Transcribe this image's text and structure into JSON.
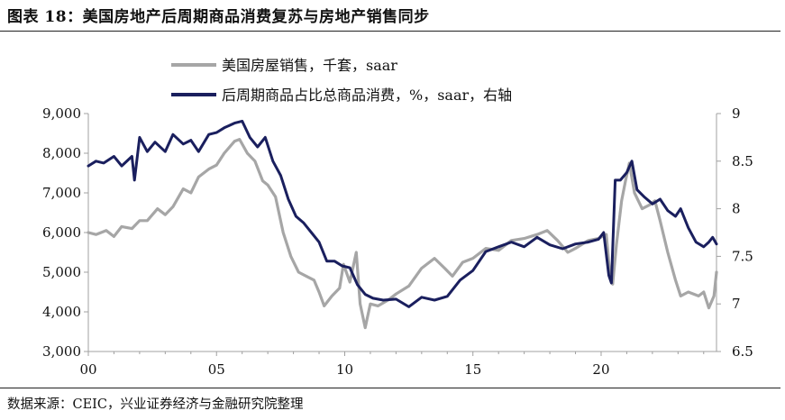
{
  "title": "图表 18：美国房地产后周期商品消费复苏与房地产销售同步",
  "source": "数据来源：CEIC，兴业证券经济与金融研究院整理",
  "colors": {
    "housing_sales": "#a6a6a6",
    "consumption_share": "#1a1f5e"
  },
  "chart_data": {
    "type": "line",
    "title": "",
    "xlabel": "",
    "ylabel": "",
    "x_ticks": [
      "00",
      "05",
      "10",
      "15",
      "20"
    ],
    "xlim": [
      2000,
      2024.5
    ],
    "y_left": {
      "lim": [
        3000,
        9000
      ],
      "ticks": [
        "3,000",
        "4,000",
        "5,000",
        "6,000",
        "7,000",
        "8,000",
        "9,000"
      ]
    },
    "y_right": {
      "lim": [
        6.5,
        9
      ],
      "ticks": [
        "6.5",
        "7",
        "7.5",
        "8",
        "8.5",
        "9"
      ]
    },
    "legend_placement": "top",
    "series": [
      {
        "name": "美国房屋销售，千套，saar",
        "axis": "left",
        "points": [
          [
            2000.0,
            6000
          ],
          [
            2000.3,
            5950
          ],
          [
            2000.7,
            6050
          ],
          [
            2001.0,
            5900
          ],
          [
            2001.3,
            6150
          ],
          [
            2001.7,
            6100
          ],
          [
            2002.0,
            6300
          ],
          [
            2002.3,
            6300
          ],
          [
            2002.7,
            6600
          ],
          [
            2003.0,
            6450
          ],
          [
            2003.3,
            6650
          ],
          [
            2003.7,
            7100
          ],
          [
            2004.0,
            7000
          ],
          [
            2004.3,
            7400
          ],
          [
            2004.7,
            7600
          ],
          [
            2005.0,
            7700
          ],
          [
            2005.3,
            8000
          ],
          [
            2005.7,
            8300
          ],
          [
            2005.9,
            8350
          ],
          [
            2006.2,
            8000
          ],
          [
            2006.5,
            7800
          ],
          [
            2006.8,
            7300
          ],
          [
            2007.0,
            7200
          ],
          [
            2007.3,
            6900
          ],
          [
            2007.6,
            6000
          ],
          [
            2007.9,
            5400
          ],
          [
            2008.2,
            5000
          ],
          [
            2008.5,
            4900
          ],
          [
            2008.8,
            4800
          ],
          [
            2009.0,
            4500
          ],
          [
            2009.2,
            4150
          ],
          [
            2009.5,
            4400
          ],
          [
            2009.8,
            4600
          ],
          [
            2009.95,
            5200
          ],
          [
            2010.2,
            4750
          ],
          [
            2010.45,
            5500
          ],
          [
            2010.6,
            4200
          ],
          [
            2010.8,
            3600
          ],
          [
            2011.0,
            4200
          ],
          [
            2011.3,
            4150
          ],
          [
            2011.7,
            4300
          ],
          [
            2012.0,
            4450
          ],
          [
            2012.5,
            4650
          ],
          [
            2013.0,
            5100
          ],
          [
            2013.5,
            5350
          ],
          [
            2013.9,
            5100
          ],
          [
            2014.2,
            4900
          ],
          [
            2014.6,
            5250
          ],
          [
            2015.0,
            5350
          ],
          [
            2015.5,
            5600
          ],
          [
            2016.0,
            5550
          ],
          [
            2016.5,
            5800
          ],
          [
            2017.0,
            5850
          ],
          [
            2017.5,
            5950
          ],
          [
            2017.9,
            6050
          ],
          [
            2018.3,
            5800
          ],
          [
            2018.7,
            5500
          ],
          [
            2019.0,
            5600
          ],
          [
            2019.5,
            5800
          ],
          [
            2019.9,
            5850
          ],
          [
            2020.2,
            5950
          ],
          [
            2020.35,
            4900
          ],
          [
            2020.45,
            4700
          ],
          [
            2020.6,
            5700
          ],
          [
            2020.8,
            6800
          ],
          [
            2020.95,
            7300
          ],
          [
            2021.1,
            7750
          ],
          [
            2021.3,
            7000
          ],
          [
            2021.6,
            6600
          ],
          [
            2021.9,
            6700
          ],
          [
            2022.1,
            6800
          ],
          [
            2022.3,
            6300
          ],
          [
            2022.6,
            5500
          ],
          [
            2022.9,
            4800
          ],
          [
            2023.1,
            4400
          ],
          [
            2023.4,
            4500
          ],
          [
            2023.8,
            4400
          ],
          [
            2024.0,
            4500
          ],
          [
            2024.2,
            4100
          ],
          [
            2024.4,
            4400
          ],
          [
            2024.5,
            5000
          ]
        ]
      },
      {
        "name": "后周期商品占比总商品消费，%，saar，右轴",
        "axis": "right",
        "points": [
          [
            2000.0,
            8.45
          ],
          [
            2000.3,
            8.5
          ],
          [
            2000.6,
            8.48
          ],
          [
            2001.0,
            8.55
          ],
          [
            2001.3,
            8.45
          ],
          [
            2001.7,
            8.55
          ],
          [
            2001.8,
            8.3
          ],
          [
            2002.0,
            8.75
          ],
          [
            2002.3,
            8.6
          ],
          [
            2002.6,
            8.7
          ],
          [
            2003.0,
            8.6
          ],
          [
            2003.3,
            8.78
          ],
          [
            2003.7,
            8.68
          ],
          [
            2004.0,
            8.72
          ],
          [
            2004.3,
            8.6
          ],
          [
            2004.7,
            8.78
          ],
          [
            2005.0,
            8.8
          ],
          [
            2005.3,
            8.85
          ],
          [
            2005.7,
            8.9
          ],
          [
            2006.0,
            8.92
          ],
          [
            2006.3,
            8.75
          ],
          [
            2006.6,
            8.65
          ],
          [
            2006.9,
            8.75
          ],
          [
            2007.2,
            8.5
          ],
          [
            2007.5,
            8.35
          ],
          [
            2007.8,
            8.1
          ],
          [
            2008.1,
            7.92
          ],
          [
            2008.4,
            7.85
          ],
          [
            2008.7,
            7.75
          ],
          [
            2009.0,
            7.65
          ],
          [
            2009.3,
            7.45
          ],
          [
            2009.6,
            7.45
          ],
          [
            2009.9,
            7.4
          ],
          [
            2010.2,
            7.38
          ],
          [
            2010.5,
            7.2
          ],
          [
            2010.8,
            7.1
          ],
          [
            2011.1,
            7.06
          ],
          [
            2011.5,
            7.04
          ],
          [
            2012.0,
            7.05
          ],
          [
            2012.5,
            6.97
          ],
          [
            2013.0,
            7.07
          ],
          [
            2013.5,
            7.04
          ],
          [
            2014.0,
            7.08
          ],
          [
            2014.5,
            7.25
          ],
          [
            2015.0,
            7.35
          ],
          [
            2015.5,
            7.55
          ],
          [
            2016.0,
            7.6
          ],
          [
            2016.5,
            7.65
          ],
          [
            2017.0,
            7.6
          ],
          [
            2017.5,
            7.7
          ],
          [
            2018.0,
            7.62
          ],
          [
            2018.5,
            7.58
          ],
          [
            2019.0,
            7.63
          ],
          [
            2019.5,
            7.65
          ],
          [
            2019.9,
            7.68
          ],
          [
            2020.1,
            7.75
          ],
          [
            2020.3,
            7.3
          ],
          [
            2020.4,
            7.22
          ],
          [
            2020.55,
            8.3
          ],
          [
            2020.75,
            8.3
          ],
          [
            2021.0,
            8.38
          ],
          [
            2021.2,
            8.5
          ],
          [
            2021.4,
            8.2
          ],
          [
            2021.7,
            8.12
          ],
          [
            2022.0,
            8.05
          ],
          [
            2022.3,
            8.1
          ],
          [
            2022.6,
            7.98
          ],
          [
            2022.9,
            7.92
          ],
          [
            2023.1,
            8.0
          ],
          [
            2023.4,
            7.8
          ],
          [
            2023.7,
            7.65
          ],
          [
            2024.0,
            7.6
          ],
          [
            2024.2,
            7.65
          ],
          [
            2024.35,
            7.7
          ],
          [
            2024.5,
            7.63
          ]
        ]
      }
    ]
  }
}
